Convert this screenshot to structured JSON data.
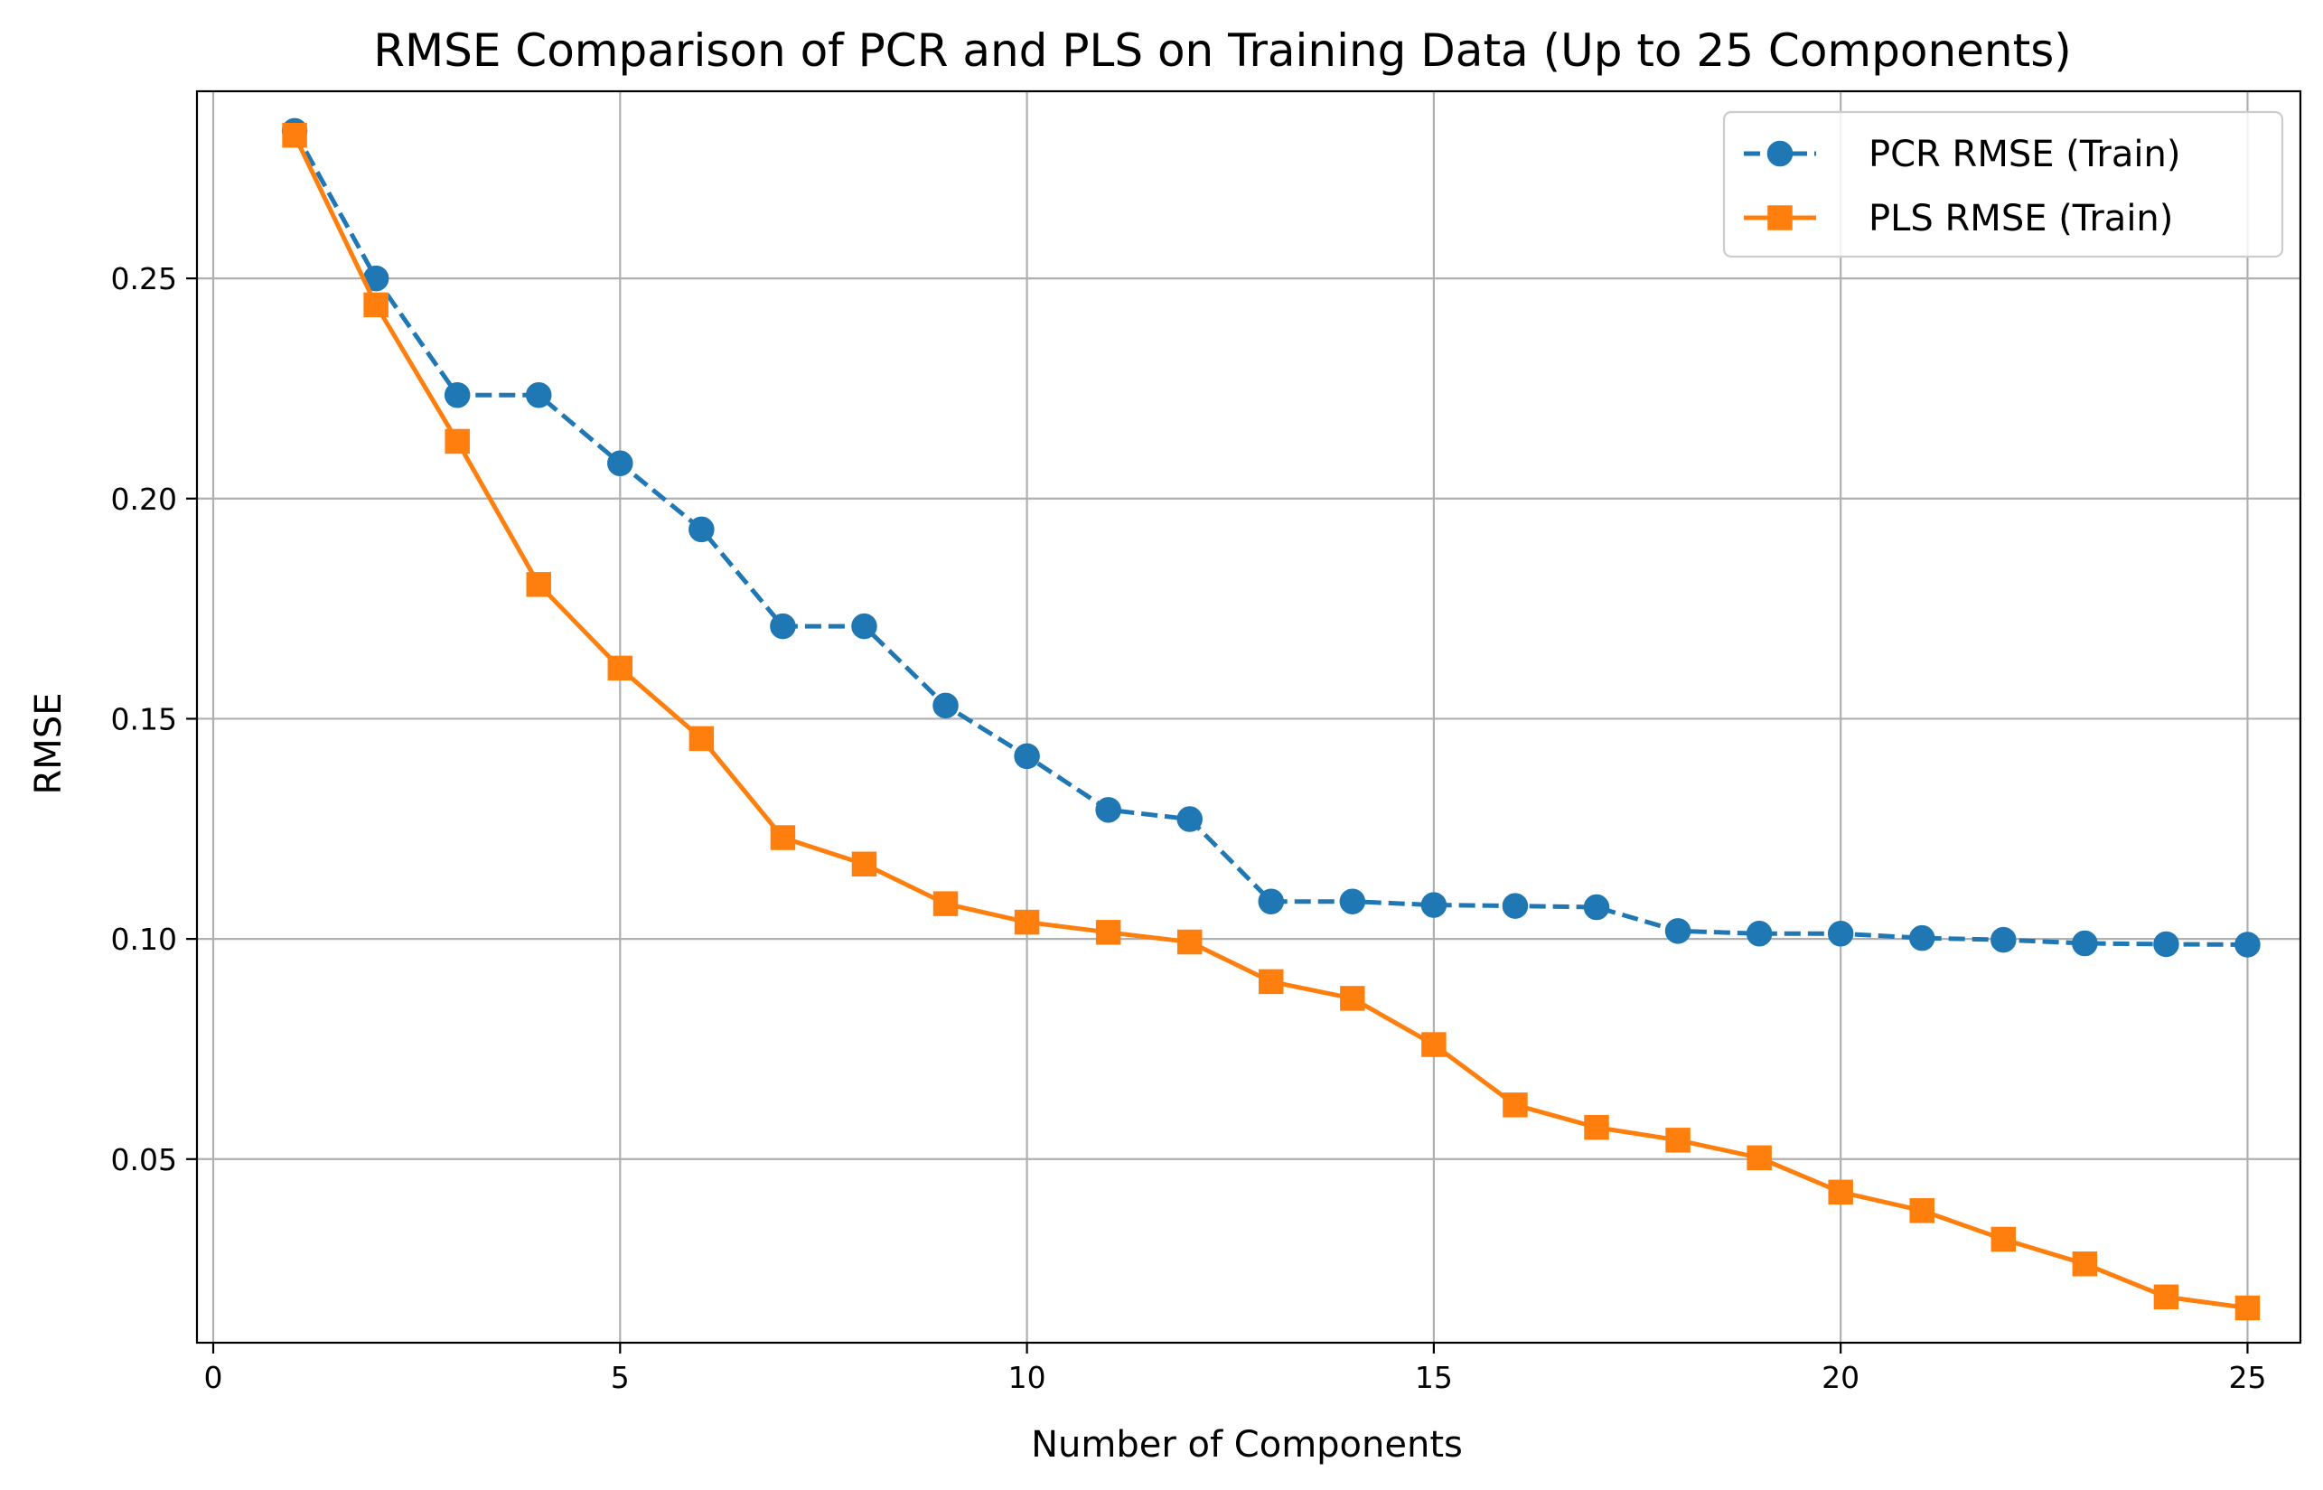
{
  "chart_data": {
    "type": "line",
    "title": "RMSE Comparison of PCR and PLS on Training Data (Up to 25 Components)",
    "xlabel": "Number of Components",
    "ylabel": "RMSE",
    "xlim": [
      -0.2,
      25.65
    ],
    "ylim": [
      0.0083,
      0.2925
    ],
    "xticks": [
      0,
      5,
      10,
      15,
      20,
      25
    ],
    "yticks": [
      0.05,
      0.1,
      0.15,
      0.2,
      0.25
    ],
    "xtick_labels": [
      "0",
      "5",
      "10",
      "15",
      "20",
      "25"
    ],
    "ytick_labels": [
      "0.05",
      "0.10",
      "0.15",
      "0.20",
      "0.25"
    ],
    "grid": true,
    "legend_position": "top-right",
    "x": [
      1,
      2,
      3,
      4,
      5,
      6,
      7,
      8,
      9,
      10,
      11,
      12,
      13,
      14,
      15,
      16,
      17,
      18,
      19,
      20,
      21,
      22,
      23,
      24,
      25
    ],
    "series": [
      {
        "name": "PCR RMSE (Train)",
        "color": "#1f77b4",
        "marker": "circle",
        "line_style": "dashed",
        "values": [
          0.2835,
          0.25,
          0.2235,
          0.2235,
          0.208,
          0.193,
          0.171,
          0.171,
          0.153,
          0.1415,
          0.1293,
          0.1272,
          0.1085,
          0.1085,
          0.1077,
          0.1075,
          0.1072,
          0.1018,
          0.1012,
          0.1012,
          0.1002,
          0.0998,
          0.099,
          0.0988,
          0.0987
        ]
      },
      {
        "name": "PLS RMSE (Train)",
        "color": "#ff7f0e",
        "marker": "square",
        "line_style": "solid",
        "values": [
          0.2825,
          0.244,
          0.213,
          0.1805,
          0.1615,
          0.1455,
          0.123,
          0.117,
          0.108,
          0.1038,
          0.1015,
          0.0993,
          0.0903,
          0.0865,
          0.076,
          0.0623,
          0.0572,
          0.0543,
          0.0503,
          0.0425,
          0.0383,
          0.0318,
          0.0262,
          0.0187,
          0.0162
        ]
      }
    ]
  }
}
